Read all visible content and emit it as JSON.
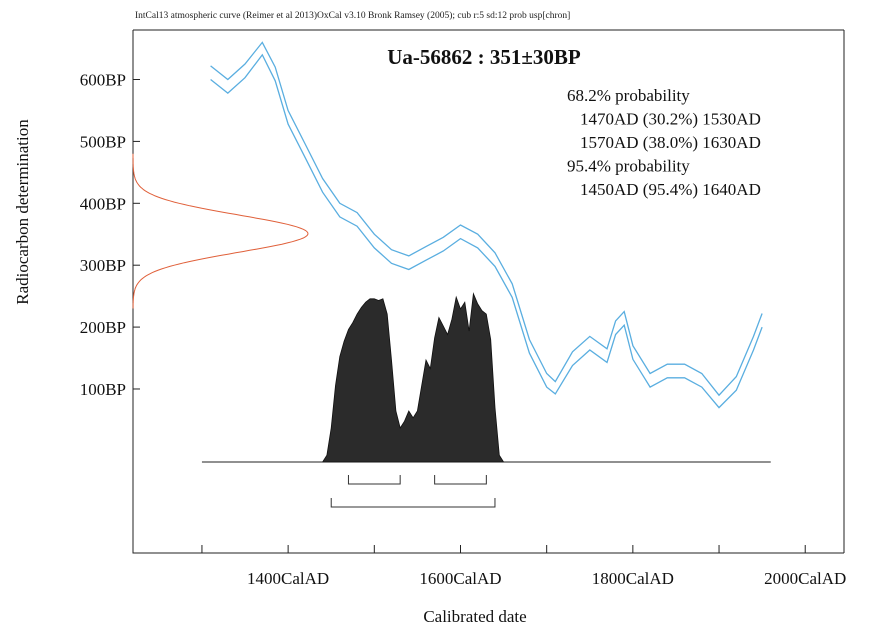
{
  "chart_data": {
    "type": "area",
    "header": "IntCal13 atmospheric curve (Reimer et al 2013)OxCal v3.10 Bronk Ramsey (2005); cub r:5 sd:12 prob usp[chron]",
    "title": "Ua-56862 : 351±30BP",
    "xlabel": "Calibrated date",
    "ylabel": "Radiocarbon determination",
    "xlim": [
      1220,
      2045
    ],
    "ylim": [
      -165,
      680
    ],
    "x_ticks": [
      1300,
      1400,
      1500,
      1600,
      1700,
      1800,
      1900,
      2000
    ],
    "x_tick_labels": [
      {
        "x": 1400,
        "label": "1400CalAD"
      },
      {
        "x": 1600,
        "label": "1600CalAD"
      },
      {
        "x": 1800,
        "label": "1800CalAD"
      },
      {
        "x": 2000,
        "label": "2000CalAD"
      }
    ],
    "y_ticks": [
      {
        "y": 600,
        "label": "600BP"
      },
      {
        "y": 500,
        "label": "500BP"
      },
      {
        "y": 400,
        "label": "400BP"
      },
      {
        "y": 300,
        "label": "300BP"
      },
      {
        "y": 200,
        "label": "200BP"
      },
      {
        "y": 100,
        "label": "100BP"
      }
    ],
    "summary": [
      {
        "text": "68.2% probability",
        "indent": 0
      },
      {
        "text": "1470AD (30.2%) 1530AD",
        "indent": 1
      },
      {
        "text": "1570AD (38.0%) 1630AD",
        "indent": 1
      },
      {
        "text": "95.4% probability",
        "indent": 0
      },
      {
        "text": "1450AD (95.4%) 1640AD",
        "indent": 1
      }
    ],
    "measurement": {
      "mean": 351,
      "sd": 30
    },
    "colors": {
      "calibration": "#5aaee0",
      "measurement": "#e0603a",
      "distribution": "#2b2b2b",
      "axis": "#222222"
    },
    "calibration_curve": {
      "x": [
        1310,
        1330,
        1350,
        1370,
        1385,
        1400,
        1420,
        1440,
        1460,
        1480,
        1500,
        1520,
        1540,
        1560,
        1580,
        1600,
        1620,
        1640,
        1660,
        1680,
        1700,
        1710,
        1730,
        1750,
        1770,
        1780,
        1790,
        1800,
        1820,
        1840,
        1860,
        1880,
        1900,
        1920,
        1940,
        1950
      ],
      "upper": [
        622,
        600,
        625,
        660,
        620,
        550,
        495,
        440,
        400,
        385,
        350,
        325,
        315,
        330,
        345,
        365,
        350,
        320,
        270,
        180,
        125,
        112,
        160,
        185,
        165,
        210,
        225,
        170,
        125,
        140,
        140,
        125,
        90,
        120,
        185,
        222
      ],
      "lower": [
        600,
        578,
        603,
        640,
        598,
        528,
        473,
        418,
        378,
        363,
        328,
        303,
        293,
        308,
        323,
        343,
        328,
        298,
        248,
        158,
        103,
        92,
        138,
        163,
        143,
        188,
        203,
        148,
        103,
        118,
        118,
        103,
        70,
        98,
        163,
        200
      ]
    },
    "posterior_distribution": {
      "x": [
        1440,
        1445,
        1450,
        1455,
        1460,
        1465,
        1470,
        1475,
        1480,
        1485,
        1490,
        1495,
        1500,
        1505,
        1510,
        1515,
        1520,
        1525,
        1530,
        1535,
        1540,
        1545,
        1550,
        1555,
        1560,
        1565,
        1570,
        1575,
        1580,
        1585,
        1590,
        1595,
        1600,
        1605,
        1610,
        1615,
        1620,
        1625,
        1630,
        1635,
        1640,
        1645,
        1650
      ],
      "y": [
        0,
        0.04,
        0.2,
        0.45,
        0.62,
        0.71,
        0.78,
        0.82,
        0.87,
        0.91,
        0.94,
        0.96,
        0.96,
        0.95,
        0.96,
        0.87,
        0.6,
        0.3,
        0.2,
        0.24,
        0.3,
        0.26,
        0.3,
        0.45,
        0.6,
        0.55,
        0.73,
        0.85,
        0.8,
        0.75,
        0.84,
        0.97,
        0.9,
        0.94,
        0.77,
        0.99,
        0.93,
        0.89,
        0.87,
        0.72,
        0.32,
        0.04,
        0
      ],
      "height": 170
    },
    "ranges_68": [
      [
        1470,
        1530
      ],
      [
        1570,
        1630
      ]
    ],
    "ranges_95": [
      [
        1450,
        1640
      ]
    ]
  }
}
